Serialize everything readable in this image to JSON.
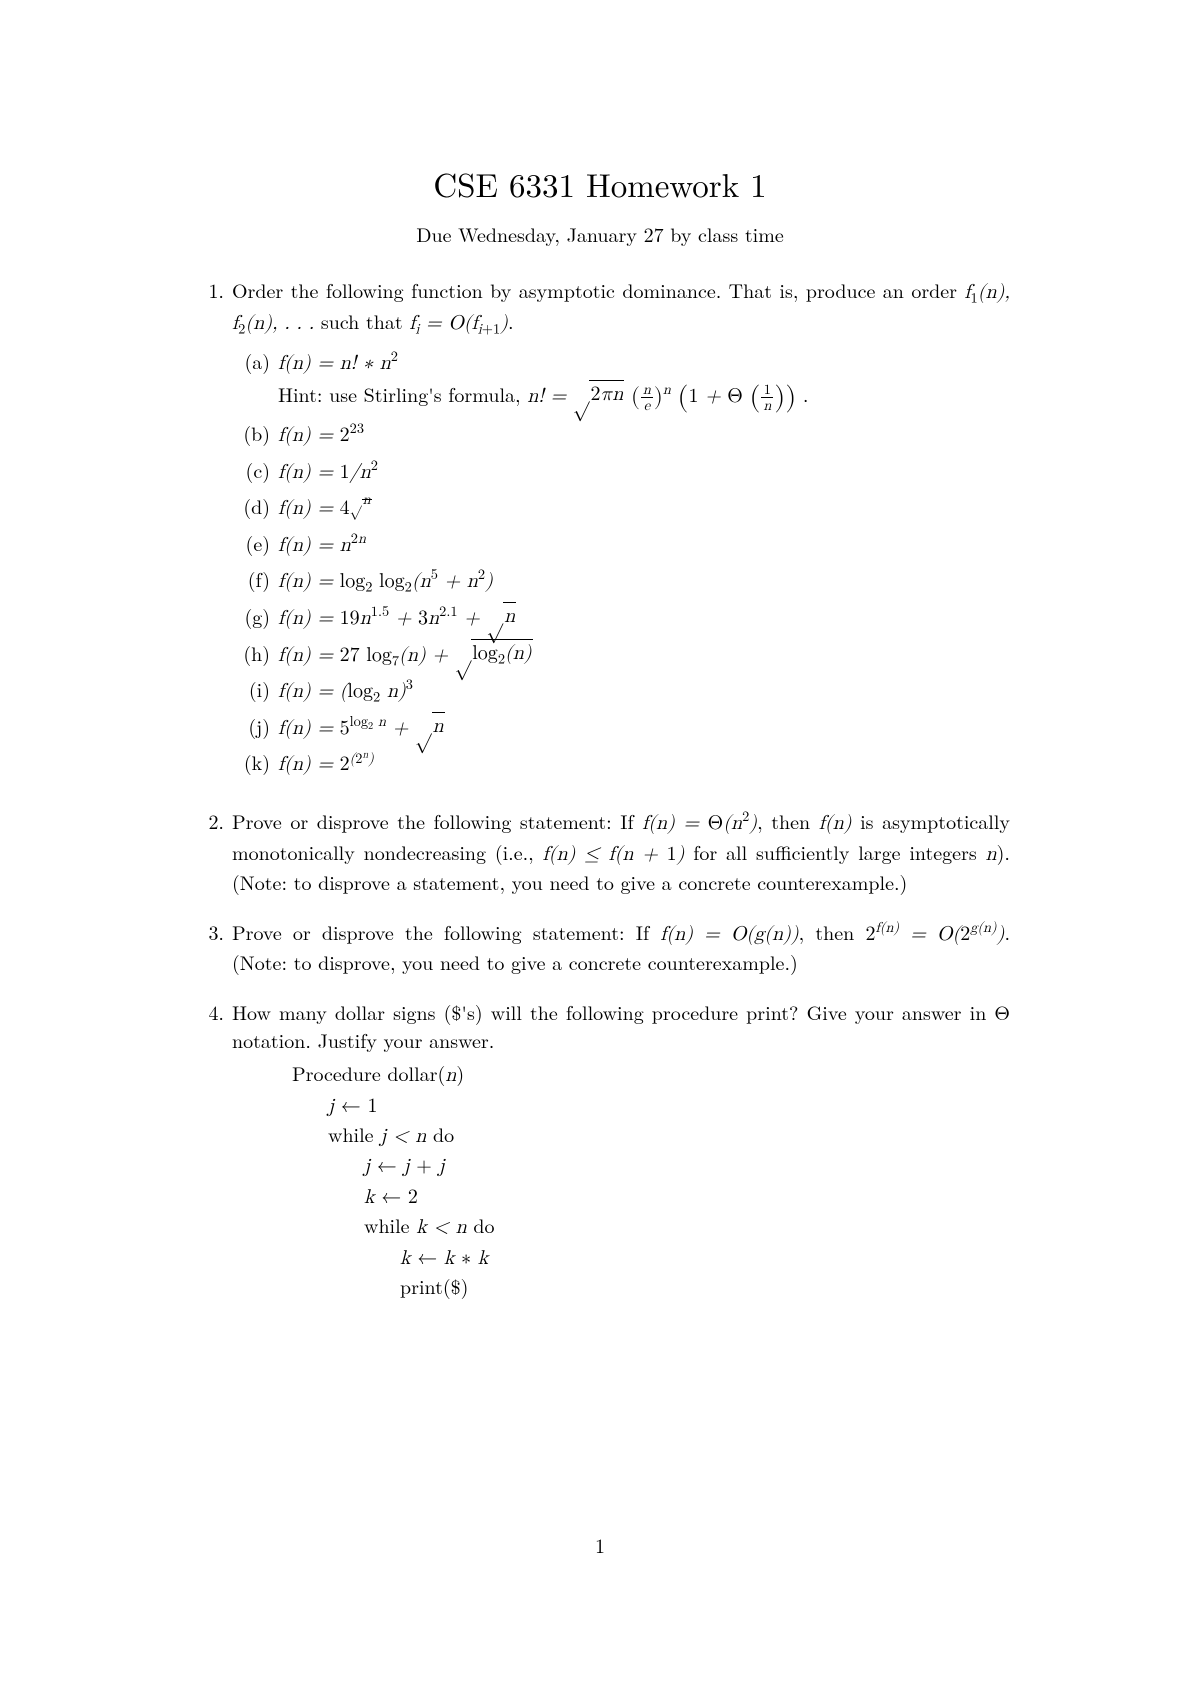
{
  "title": "CSE 6331 Homework 1",
  "subtitle": "Due Wednesday, January 27 by class time",
  "page_number": "1",
  "problems": {
    "p1": {
      "num": "1.",
      "text_a": "Order the following function by asymptotic dominance. That is, produce an order ",
      "text_b": " such that ",
      "sub": {
        "a": {
          "label": "(a)",
          "hint_prefix": "Hint: use Stirling's formula, "
        },
        "b": {
          "label": "(b)"
        },
        "c": {
          "label": "(c)"
        },
        "d": {
          "label": "(d)"
        },
        "e": {
          "label": "(e)"
        },
        "f": {
          "label": "(f)"
        },
        "g": {
          "label": "(g)"
        },
        "h": {
          "label": "(h)"
        },
        "i": {
          "label": "(i)"
        },
        "j": {
          "label": "(j)"
        },
        "k": {
          "label": "(k)"
        }
      }
    },
    "p2": {
      "num": "2.",
      "text_a": "Prove or disprove the following statement: If ",
      "text_b": ", then ",
      "text_c": " is asymptotically monotonically nondecreasing (i.e., ",
      "text_d": " for all sufficiently large integers ",
      "text_e": ").  (Note: to disprove a statement, you need to give a concrete counterexample.)"
    },
    "p3": {
      "num": "3.",
      "text_a": "Prove or disprove the following statement:  If ",
      "text_b": ",  then ",
      "text_c": ". (Note: to disprove, you need to give a concrete counterexample.)"
    },
    "p4": {
      "num": "4.",
      "text": "How many dollar signs ($'s) will the following procedure print? Give your answer in Θ notation. Justify your answer.",
      "proc": {
        "l0": "Procedure dollar",
        "while": "while ",
        "do": " do",
        "print": "print($)"
      }
    }
  }
}
